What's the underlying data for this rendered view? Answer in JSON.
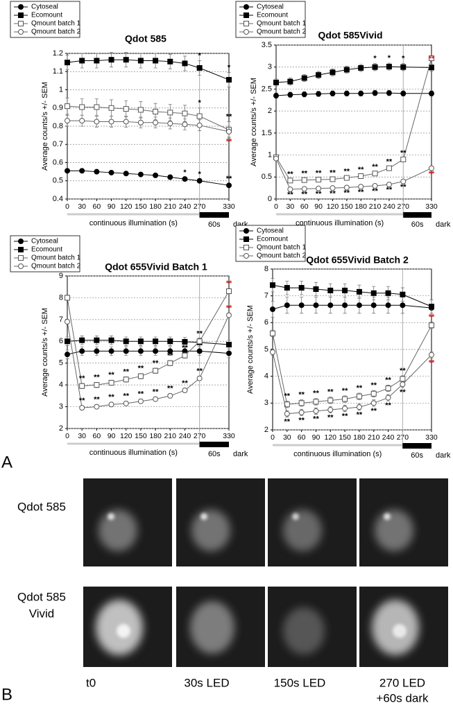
{
  "panel_a_label": "A",
  "chart_data": [
    {
      "type": "line",
      "title": "Qdot 585",
      "y_label": "Average counts/s +/- SEM",
      "x_label": "continuous illumination (s)",
      "dark_period_label": "60s",
      "dark_label": "dark",
      "x": [
        0,
        30,
        60,
        90,
        120,
        150,
        180,
        210,
        240,
        270,
        330
      ],
      "xlim": [
        0,
        330
      ],
      "xticks": [
        0,
        30,
        60,
        90,
        120,
        150,
        180,
        210,
        240,
        270,
        330
      ],
      "ylim": [
        0.4,
        1.2
      ],
      "yticks": [
        0.4,
        0.5,
        0.6,
        0.7,
        0.8,
        0.9,
        1,
        1.1,
        1.2
      ],
      "grid": true,
      "legend": "top-left",
      "illumination": [
        0,
        270
      ],
      "dark_period": [
        270,
        330
      ],
      "series": [
        {
          "name": "Cytoseal",
          "color": "#000000",
          "marker": "filled-circle",
          "values": [
            0.555,
            0.555,
            0.55,
            0.545,
            0.54,
            0.535,
            0.53,
            0.52,
            0.51,
            0.5,
            0.475
          ],
          "errors": [
            0.008,
            0.008,
            0.008,
            0.008,
            0.008,
            0.008,
            0.008,
            0.008,
            0.008,
            0.008,
            0.008
          ],
          "significance_side": "above",
          "significance": [
            null,
            null,
            null,
            null,
            null,
            null,
            null,
            null,
            "*",
            "*",
            "**"
          ]
        },
        {
          "name": "Ecomount",
          "color": "#000000",
          "marker": "filled-square",
          "values": [
            1.15,
            1.16,
            1.16,
            1.165,
            1.165,
            1.16,
            1.16,
            1.155,
            1.145,
            1.12,
            1.055
          ],
          "errors": [
            0.04,
            0.04,
            0.04,
            0.04,
            0.04,
            0.04,
            0.04,
            0.04,
            0.04,
            0.04,
            0.04
          ],
          "significance_side": "above",
          "significance": [
            null,
            null,
            null,
            null,
            null,
            null,
            null,
            null,
            null,
            "*",
            "*"
          ]
        },
        {
          "name": "Qmount batch 1",
          "color": "#666666",
          "marker": "open-square",
          "values": [
            0.91,
            0.905,
            0.905,
            0.9,
            0.895,
            0.89,
            0.88,
            0.875,
            0.87,
            0.855,
            0.78
          ],
          "errors": [
            0.045,
            0.045,
            0.045,
            0.045,
            0.045,
            0.045,
            0.045,
            0.045,
            0.045,
            0.045,
            0.045
          ],
          "significance_side": "above",
          "significance": [
            null,
            null,
            null,
            null,
            null,
            null,
            null,
            null,
            null,
            "*",
            "**"
          ]
        },
        {
          "name": "Qmount batch 2",
          "color": "#666666",
          "marker": "open-circle",
          "values": [
            0.83,
            0.83,
            0.825,
            0.825,
            0.825,
            0.82,
            0.82,
            0.815,
            0.81,
            0.805,
            0.77
          ],
          "errors": [
            0.03,
            0.03,
            0.03,
            0.03,
            0.03,
            0.03,
            0.03,
            0.03,
            0.03,
            0.03,
            0.03
          ],
          "significance_side": "below",
          "significance": [
            null,
            null,
            null,
            null,
            null,
            null,
            null,
            null,
            null,
            null,
            {
              "text": "**",
              "color": "#e02020"
            }
          ]
        }
      ]
    },
    {
      "type": "line",
      "title": "Qdot 585Vivid",
      "y_label": "Average counts/s +/- SEM",
      "x_label": "continuous illumination (s)",
      "dark_period_label": "60s",
      "dark_label": "dark",
      "x": [
        0,
        30,
        60,
        90,
        120,
        150,
        180,
        210,
        240,
        270,
        330
      ],
      "xlim": [
        0,
        330
      ],
      "xticks": [
        0,
        30,
        60,
        90,
        120,
        150,
        180,
        210,
        240,
        270,
        330
      ],
      "ylim": [
        0,
        3.5
      ],
      "yticks": [
        0,
        0.5,
        1,
        1.5,
        2,
        2.5,
        3,
        3.5
      ],
      "grid": true,
      "legend": "top-left",
      "illumination": [
        0,
        270
      ],
      "dark_period": [
        270,
        330
      ],
      "series": [
        {
          "name": "Cytoseal",
          "color": "#000000",
          "marker": "filled-circle",
          "values": [
            2.35,
            2.37,
            2.38,
            2.39,
            2.4,
            2.4,
            2.4,
            2.41,
            2.41,
            2.4,
            2.4
          ],
          "errors": [
            0.06,
            0.06,
            0.06,
            0.06,
            0.06,
            0.06,
            0.06,
            0.06,
            0.06,
            0.06,
            0.06
          ]
        },
        {
          "name": "Ecomount",
          "color": "#000000",
          "marker": "filled-square",
          "values": [
            2.65,
            2.67,
            2.75,
            2.82,
            2.88,
            2.94,
            2.98,
            3.0,
            3.01,
            3.0,
            2.99
          ],
          "errors": [
            0.08,
            0.08,
            0.08,
            0.08,
            0.08,
            0.08,
            0.08,
            0.08,
            0.08,
            0.08,
            0.08
          ],
          "significance_side": "above",
          "significance": [
            null,
            null,
            null,
            null,
            null,
            null,
            null,
            "*",
            "*",
            "*",
            {
              "text": "**",
              "color": "#e02020"
            }
          ]
        },
        {
          "name": "Qmount batch 1",
          "color": "#666666",
          "marker": "open-square",
          "values": [
            0.95,
            0.42,
            0.43,
            0.44,
            0.45,
            0.48,
            0.52,
            0.58,
            0.7,
            0.9,
            3.2
          ],
          "errors": [
            0.03,
            0.03,
            0.03,
            0.03,
            0.03,
            0.03,
            0.03,
            0.03,
            0.03,
            0.03,
            0.03
          ],
          "significance_side": "above",
          "significance": [
            null,
            "**",
            "**",
            "**",
            "**",
            "**",
            "**",
            "**",
            "**",
            "**",
            null
          ]
        },
        {
          "name": "Qmount batch 2",
          "color": "#666666",
          "marker": "open-circle",
          "values": [
            0.92,
            0.22,
            0.23,
            0.24,
            0.25,
            0.26,
            0.28,
            0.3,
            0.33,
            0.4,
            0.7
          ],
          "errors": [
            0.02,
            0.02,
            0.02,
            0.02,
            0.02,
            0.02,
            0.02,
            0.02,
            0.02,
            0.02,
            0.02
          ],
          "significance_side": "below",
          "significance": [
            null,
            "**",
            "**",
            "**",
            "**",
            "**",
            "**",
            "**",
            "**",
            "**",
            {
              "text": "**",
              "color": "#e02020"
            }
          ]
        }
      ]
    },
    {
      "type": "line",
      "title": "Qdot 655Vivid Batch 1",
      "y_label": "Average counts/s +/- SEM",
      "x_label": "continuous illumination (s)",
      "dark_period_label": "60s",
      "dark_label": "dark",
      "x": [
        0,
        30,
        60,
        90,
        120,
        150,
        180,
        210,
        240,
        270,
        330
      ],
      "xlim": [
        0,
        330
      ],
      "xticks": [
        0,
        30,
        60,
        90,
        120,
        150,
        180,
        210,
        240,
        270,
        330
      ],
      "ylim": [
        2,
        9
      ],
      "yticks": [
        2,
        3,
        4,
        5,
        6,
        7,
        8,
        9
      ],
      "grid": true,
      "legend": "top-left",
      "illumination": [
        0,
        270
      ],
      "dark_period": [
        270,
        330
      ],
      "series": [
        {
          "name": "Cytoseal",
          "color": "#000000",
          "marker": "filled-circle",
          "values": [
            5.4,
            5.55,
            5.55,
            5.55,
            5.55,
            5.55,
            5.55,
            5.55,
            5.55,
            5.55,
            5.45
          ],
          "errors": [
            0.2,
            0.2,
            0.2,
            0.2,
            0.2,
            0.2,
            0.2,
            0.2,
            0.2,
            0.2,
            0.2
          ]
        },
        {
          "name": "Ecomount",
          "color": "#000000",
          "marker": "filled-square",
          "values": [
            6.0,
            6.05,
            6.05,
            6.05,
            6.0,
            6.0,
            6.0,
            6.0,
            5.98,
            5.95,
            5.85
          ],
          "errors": [
            0.2,
            0.2,
            0.2,
            0.2,
            0.2,
            0.2,
            0.2,
            0.2,
            0.2,
            0.2,
            0.2
          ]
        },
        {
          "name": "Qmount batch 1",
          "color": "#666666",
          "marker": "open-square",
          "values": [
            8.0,
            3.95,
            4.0,
            4.1,
            4.25,
            4.4,
            4.65,
            5.0,
            5.35,
            6.0,
            8.3
          ],
          "errors": [
            0.12,
            0.12,
            0.12,
            0.12,
            0.12,
            0.12,
            0.12,
            0.12,
            0.12,
            0.12,
            0.12
          ],
          "significance_side": "above",
          "significance": [
            null,
            "**",
            "**",
            "**",
            "**",
            "**",
            "**",
            "**",
            "**",
            "**",
            {
              "text": "**",
              "color": "#e02020"
            }
          ]
        },
        {
          "name": "Qmount batch 2",
          "color": "#666666",
          "marker": "open-circle",
          "values": [
            6.9,
            2.95,
            3.0,
            3.1,
            3.15,
            3.25,
            3.35,
            3.5,
            3.75,
            4.3,
            7.2
          ],
          "errors": [
            0.1,
            0.1,
            0.1,
            0.1,
            0.1,
            0.1,
            0.1,
            0.1,
            0.1,
            0.1,
            0.1
          ],
          "significance_side": "above",
          "significance": [
            null,
            "**",
            "**",
            "**",
            "**",
            "**",
            "**",
            "**",
            "**",
            "**",
            {
              "text": "**",
              "color": "#e02020"
            }
          ]
        }
      ]
    },
    {
      "type": "line",
      "title": "Qdot 655Vivid Batch 2",
      "y_label": "Average counts/s +/- SEM",
      "x_label": "continuous illumination (s)",
      "dark_period_label": "60s",
      "dark_label": "dark",
      "x": [
        0,
        30,
        60,
        90,
        120,
        150,
        180,
        210,
        240,
        270,
        330
      ],
      "xlim": [
        0,
        330
      ],
      "xticks": [
        0,
        30,
        60,
        90,
        120,
        150,
        180,
        210,
        240,
        270,
        330
      ],
      "ylim": [
        2,
        8
      ],
      "yticks": [
        2,
        3,
        4,
        5,
        6,
        7,
        8
      ],
      "grid": true,
      "legend": "top-left",
      "illumination": [
        0,
        270
      ],
      "dark_period": [
        270,
        330
      ],
      "series": [
        {
          "name": "Cytoseal",
          "color": "#000000",
          "marker": "filled-circle",
          "values": [
            6.5,
            6.65,
            6.65,
            6.65,
            6.65,
            6.65,
            6.65,
            6.65,
            6.65,
            6.65,
            6.55
          ],
          "errors": [
            0.3,
            0.3,
            0.3,
            0.3,
            0.3,
            0.3,
            0.3,
            0.3,
            0.3,
            0.3,
            0.3
          ]
        },
        {
          "name": "Ecomount",
          "color": "#000000",
          "marker": "filled-square",
          "values": [
            7.4,
            7.3,
            7.3,
            7.25,
            7.2,
            7.2,
            7.15,
            7.1,
            7.1,
            7.05,
            6.6
          ],
          "errors": [
            0.25,
            0.25,
            0.25,
            0.25,
            0.25,
            0.25,
            0.25,
            0.25,
            0.25,
            0.25,
            0.25
          ]
        },
        {
          "name": "Qmount batch 1",
          "color": "#666666",
          "marker": "open-square",
          "values": [
            5.6,
            2.95,
            3.0,
            3.05,
            3.1,
            3.15,
            3.25,
            3.35,
            3.55,
            3.9,
            5.9
          ],
          "errors": [
            0.12,
            0.12,
            0.12,
            0.12,
            0.12,
            0.12,
            0.12,
            0.12,
            0.12,
            0.12,
            0.12
          ],
          "significance_side": "above",
          "significance": [
            null,
            "**",
            "**",
            "**",
            "**",
            "**",
            "**",
            "**",
            "**",
            "**",
            {
              "text": "**",
              "color": "#e02020"
            }
          ]
        },
        {
          "name": "Qmount batch 2",
          "color": "#666666",
          "marker": "open-circle",
          "values": [
            4.9,
            2.6,
            2.65,
            2.7,
            2.75,
            2.8,
            2.85,
            3.0,
            3.2,
            3.7,
            4.8
          ],
          "errors": [
            0.12,
            0.12,
            0.12,
            0.12,
            0.12,
            0.12,
            0.12,
            0.12,
            0.12,
            0.12,
            0.12
          ],
          "significance_side": "below",
          "significance": [
            null,
            "**",
            "**",
            "**",
            "**",
            "**",
            "**",
            "**",
            "**",
            "**",
            {
              "text": "**",
              "color": "#e02020"
            }
          ]
        }
      ]
    }
  ],
  "panel_b": {
    "label": "B",
    "row_labels": [
      [
        "Qdot 585"
      ],
      [
        "Qdot 585",
        "Vivid"
      ]
    ],
    "column_labels": [
      [
        "t0"
      ],
      [
        "30s LED"
      ],
      [
        "150s LED"
      ],
      [
        "270 LED",
        "+60s dark"
      ]
    ]
  }
}
